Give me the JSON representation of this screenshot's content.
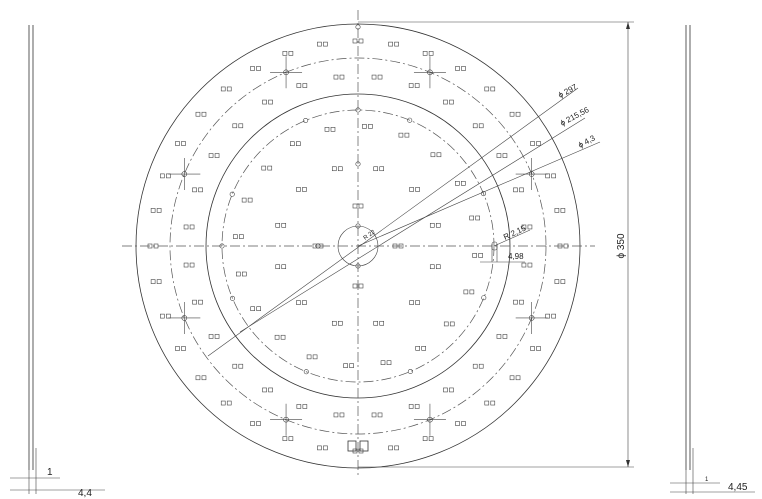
{
  "dimensions": {
    "outer_diameter": "ϕ 350",
    "pitch_diameter": "ϕ 297",
    "inner_diameter": "ϕ 215,56",
    "hole_diameter": "ϕ 4,3",
    "slot_radius": "R 2,15",
    "slot_length": "4,98",
    "center_radius": "R 22",
    "left_offset": "1",
    "left_thickness": "4,4",
    "right_offset": "1",
    "right_thickness": "4,45"
  }
}
